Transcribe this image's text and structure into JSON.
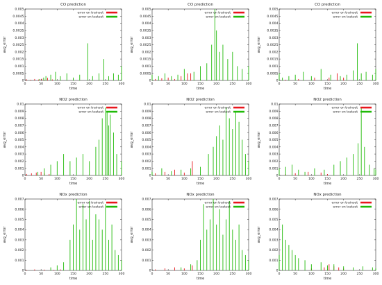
{
  "colors": {
    "train": "#e8161c",
    "test": "#1fba07",
    "axis": "#000000",
    "background": "#ffffff"
  },
  "chart_data": [
    {
      "type": "line",
      "title": "CO prediction",
      "xlabel": "time",
      "ylabel": "avg_error",
      "xlim": [
        0,
        300
      ],
      "ylim": [
        0,
        0.005
      ],
      "xticks": [
        "0",
        "50",
        "100",
        "150",
        "200",
        "250",
        "300"
      ],
      "yticks": [
        "0",
        "0.0005",
        "0.001",
        "0.0015",
        "0.002",
        "0.0025",
        "0.003",
        "0.0035",
        "0.004",
        "0.0045",
        "0.005"
      ],
      "legend": "top-right",
      "grid": false,
      "series": [
        {
          "name": "error on trainset",
          "color": "#e8161c",
          "x": [
            5,
            18,
            30,
            42,
            52,
            60,
            70,
            85
          ],
          "y": [
            8e-05,
            5e-05,
            0.0001,
            6e-05,
            0.00012,
            5e-05,
            0.00018,
            7e-05
          ]
        },
        {
          "name": "error on testset",
          "color": "#1fba07",
          "x": [
            45,
            58,
            65,
            80,
            95,
            110,
            130,
            150,
            170,
            195,
            210,
            230,
            245,
            260,
            275,
            290,
            300
          ],
          "y": [
            0.0001,
            0.0002,
            0.0003,
            0.0004,
            0.0006,
            0.0003,
            0.0005,
            0.0002,
            0.0004,
            0.0026,
            0.0003,
            0.0005,
            0.0015,
            0.0003,
            0.0005,
            0.0004,
            0.001
          ]
        }
      ]
    },
    {
      "type": "line",
      "title": "CO prediction",
      "xlabel": "time",
      "ylabel": "avg_error",
      "xlim": [
        0,
        300
      ],
      "ylim": [
        0,
        0.005
      ],
      "xticks": [
        "0",
        "50",
        "100",
        "150",
        "200",
        "250",
        "300"
      ],
      "yticks": [
        "0",
        "0.0005",
        "0.001",
        "0.0015",
        "0.002",
        "0.0025",
        "0.003",
        "0.0035",
        "0.004",
        "0.0045",
        "0.005"
      ],
      "legend": "top-right",
      "grid": false,
      "series": [
        {
          "name": "error on trainset",
          "color": "#e8161c",
          "x": [
            10,
            30,
            50,
            70,
            90,
            110,
            120
          ],
          "y": [
            0.0001,
            0.00015,
            0.0002,
            0.0001,
            0.0003,
            0.0005,
            0.0005
          ]
        },
        {
          "name": "error on testset",
          "color": "#1fba07",
          "x": [
            0,
            20,
            40,
            60,
            80,
            100,
            130,
            150,
            170,
            185,
            195,
            200,
            210,
            220,
            235,
            250,
            265,
            280,
            300
          ],
          "y": [
            0.0004,
            0.0003,
            0.0005,
            0.0003,
            0.0004,
            0.0008,
            0.0006,
            0.001,
            0.0012,
            0.0025,
            0.005,
            0.0035,
            0.002,
            0.0025,
            0.0015,
            0.002,
            0.001,
            0.0008,
            0.001
          ]
        }
      ]
    },
    {
      "type": "line",
      "title": "CO prediction",
      "xlabel": "time",
      "ylabel": "avg_error",
      "xlim": [
        0,
        300
      ],
      "ylim": [
        0,
        0.005
      ],
      "xticks": [
        "0",
        "50",
        "100",
        "150",
        "200",
        "250",
        "300"
      ],
      "yticks": [
        "0",
        "0.0005",
        "0.001",
        "0.0015",
        "0.002",
        "0.0025",
        "0.003",
        "0.0035",
        "0.004",
        "0.0045",
        "0.005"
      ],
      "legend": "top-right",
      "grid": false,
      "series": [
        {
          "name": "error on trainset",
          "color": "#e8161c",
          "x": [
            20,
            60,
            110,
            155,
            180,
            200
          ],
          "y": [
            5e-05,
            0.0001,
            0.0002,
            0.0002,
            0.0005,
            0.0002
          ]
        },
        {
          "name": "error on testset",
          "color": "#1fba07",
          "x": [
            0,
            10,
            30,
            50,
            75,
            100,
            130,
            160,
            190,
            210,
            230,
            243,
            255,
            270,
            290,
            300
          ],
          "y": [
            0.0005,
            0.0002,
            0.0003,
            0.0004,
            0.0006,
            0.0003,
            0.0008,
            0.0004,
            0.0003,
            0.0004,
            0.0007,
            0.0026,
            0.0005,
            0.0006,
            0.0004,
            0.0008
          ]
        }
      ]
    },
    {
      "type": "line",
      "title": "NO2 prediction",
      "xlabel": "time",
      "ylabel": "avg_error",
      "xlim": [
        0,
        300
      ],
      "ylim": [
        0,
        0.01
      ],
      "xticks": [
        "0",
        "50",
        "100",
        "150",
        "200",
        "250",
        "300"
      ],
      "yticks": [
        "0",
        "0.001",
        "0.002",
        "0.003",
        "0.004",
        "0.005",
        "0.006",
        "0.007",
        "0.008",
        "0.009",
        "0.01"
      ],
      "legend": "top-right",
      "grid": false,
      "series": [
        {
          "name": "error on trainset",
          "color": "#e8161c",
          "x": [
            5,
            20,
            35,
            50,
            60,
            75
          ],
          "y": [
            0.0002,
            0.0003,
            0.0004,
            0.0005,
            0.0003,
            0.0002
          ]
        },
        {
          "name": "error on testset",
          "color": "#1fba07",
          "x": [
            40,
            60,
            80,
            100,
            120,
            140,
            160,
            180,
            200,
            220,
            230,
            240,
            250,
            255,
            260,
            265,
            275,
            285,
            300
          ],
          "y": [
            0.0005,
            0.001,
            0.0015,
            0.002,
            0.003,
            0.002,
            0.0025,
            0.003,
            0.002,
            0.004,
            0.005,
            0.008,
            0.0095,
            0.009,
            0.007,
            0.0085,
            0.006,
            0.003,
            0.002
          ]
        }
      ]
    },
    {
      "type": "line",
      "title": "NO2 prediction",
      "xlabel": "time",
      "ylabel": "avg_error",
      "xlim": [
        0,
        300
      ],
      "ylim": [
        0,
        0.01
      ],
      "xticks": [
        "0",
        "50",
        "100",
        "150",
        "200",
        "250",
        "300"
      ],
      "yticks": [
        "0",
        "0.001",
        "0.002",
        "0.003",
        "0.004",
        "0.005",
        "0.006",
        "0.007",
        "0.008",
        "0.009",
        "0.01"
      ],
      "legend": "top-right",
      "grid": false,
      "series": [
        {
          "name": "error on trainset",
          "color": "#e8161c",
          "x": [
            10,
            40,
            70,
            100,
            125
          ],
          "y": [
            0.0003,
            0.0005,
            0.0008,
            0.0004,
            0.002
          ]
        },
        {
          "name": "error on testset",
          "color": "#1fba07",
          "x": [
            0,
            30,
            60,
            90,
            120,
            150,
            175,
            190,
            200,
            210,
            220,
            230,
            240,
            250,
            260,
            270,
            280,
            290,
            300
          ],
          "y": [
            0.0005,
            0.001,
            0.0006,
            0.0008,
            0.001,
            0.0012,
            0.003,
            0.004,
            0.0055,
            0.007,
            0.005,
            0.0095,
            0.008,
            0.0065,
            0.009,
            0.0075,
            0.005,
            0.003,
            0.002
          ]
        }
      ]
    },
    {
      "type": "line",
      "title": "NO2 prediction",
      "xlabel": "time",
      "ylabel": "avg_error",
      "xlim": [
        0,
        300
      ],
      "ylim": [
        0,
        0.01
      ],
      "xticks": [
        "0",
        "50",
        "100",
        "150",
        "200",
        "250",
        "300"
      ],
      "yticks": [
        "0",
        "0.001",
        "0.002",
        "0.003",
        "0.004",
        "0.005",
        "0.006",
        "0.007",
        "0.008",
        "0.009",
        "0.01"
      ],
      "legend": "top-right",
      "grid": false,
      "series": [
        {
          "name": "error on trainset",
          "color": "#e8161c",
          "x": [
            20,
            50,
            90,
            130,
            150
          ],
          "y": [
            0.0002,
            0.0003,
            0.0005,
            0.0004,
            0.0002
          ]
        },
        {
          "name": "error on testset",
          "color": "#1fba07",
          "x": [
            0,
            20,
            40,
            60,
            80,
            110,
            140,
            170,
            190,
            210,
            230,
            245,
            255,
            265,
            280,
            295,
            300
          ],
          "y": [
            0.001,
            0.0012,
            0.0015,
            0.0008,
            0.0005,
            0.001,
            0.0008,
            0.0015,
            0.002,
            0.0025,
            0.003,
            0.0045,
            0.0095,
            0.004,
            0.0015,
            0.001,
            0.0008
          ]
        }
      ]
    },
    {
      "type": "line",
      "title": "NOx prediction",
      "xlabel": "time",
      "ylabel": "avg_error",
      "xlim": [
        0,
        300
      ],
      "ylim": [
        0,
        0.007
      ],
      "xticks": [
        "0",
        "50",
        "100",
        "150",
        "200",
        "250",
        "300"
      ],
      "yticks": [
        "0",
        "0.001",
        "0.002",
        "0.003",
        "0.004",
        "0.005",
        "0.006",
        "0.007"
      ],
      "legend": "top-right",
      "grid": false,
      "series": [
        {
          "name": "error on trainset",
          "color": "#e8161c",
          "x": [
            5,
            30,
            60,
            90,
            110
          ],
          "y": [
            5e-05,
            0.0001,
            8e-05,
            6e-05,
            0.0001
          ]
        },
        {
          "name": "error on testset",
          "color": "#1fba07",
          "x": [
            80,
            100,
            120,
            140,
            150,
            160,
            170,
            180,
            190,
            200,
            210,
            220,
            230,
            240,
            250,
            260,
            270,
            280,
            290,
            300
          ],
          "y": [
            0.0003,
            0.0005,
            0.0008,
            0.003,
            0.0045,
            0.007,
            0.004,
            0.0065,
            0.005,
            0.0068,
            0.003,
            0.0055,
            0.005,
            0.004,
            0.0065,
            0.003,
            0.0045,
            0.002,
            0.0015,
            0.001
          ]
        }
      ]
    },
    {
      "type": "line",
      "title": "NOx prediction",
      "xlabel": "time",
      "ylabel": "avg_error",
      "xlim": [
        0,
        300
      ],
      "ylim": [
        0,
        0.007
      ],
      "xticks": [
        "0",
        "50",
        "100",
        "150",
        "200",
        "250",
        "300"
      ],
      "yticks": [
        "0",
        "0.001",
        "0.002",
        "0.003",
        "0.004",
        "0.005",
        "0.006",
        "0.007"
      ],
      "legend": "top-right",
      "grid": false,
      "series": [
        {
          "name": "error on trainset",
          "color": "#e8161c",
          "x": [
            10,
            40,
            70,
            100,
            125
          ],
          "y": [
            0.0001,
            0.0002,
            0.0003,
            0.0002,
            0.0005
          ]
        },
        {
          "name": "error on testset",
          "color": "#1fba07",
          "x": [
            90,
            120,
            140,
            150,
            160,
            170,
            180,
            190,
            200,
            210,
            220,
            230,
            240,
            250,
            260,
            270,
            280,
            290,
            300
          ],
          "y": [
            0.0003,
            0.0006,
            0.001,
            0.003,
            0.0065,
            0.004,
            0.005,
            0.007,
            0.0045,
            0.006,
            0.0035,
            0.005,
            0.0068,
            0.004,
            0.003,
            0.0045,
            0.002,
            0.0015,
            0.001
          ]
        }
      ]
    },
    {
      "type": "line",
      "title": "NOx prediction",
      "xlabel": "time",
      "ylabel": "avg_error",
      "xlim": [
        0,
        300
      ],
      "ylim": [
        0,
        0.007
      ],
      "xticks": [
        "0",
        "50",
        "100",
        "150",
        "200",
        "250",
        "300"
      ],
      "yticks": [
        "0",
        "0.001",
        "0.002",
        "0.003",
        "0.004",
        "0.005",
        "0.006",
        "0.007"
      ],
      "legend": "top-right",
      "grid": false,
      "series": [
        {
          "name": "error on trainset",
          "color": "#e8161c",
          "x": [
            100,
            140,
            155,
            170,
            185,
            200
          ],
          "y": [
            0.0002,
            0.0003,
            0.0006,
            0.0004,
            0.0003,
            0.0002
          ]
        },
        {
          "name": "error on testset",
          "color": "#1fba07",
          "x": [
            0,
            10,
            20,
            30,
            40,
            50,
            60,
            80,
            100,
            130,
            150,
            170,
            200,
            230,
            260,
            290,
            300
          ],
          "y": [
            0.0015,
            0.0045,
            0.003,
            0.0025,
            0.002,
            0.0015,
            0.0012,
            0.001,
            0.0006,
            0.0008,
            0.0005,
            0.0006,
            0.0004,
            0.0003,
            0.0004,
            0.0003,
            0.0002
          ]
        }
      ]
    }
  ]
}
